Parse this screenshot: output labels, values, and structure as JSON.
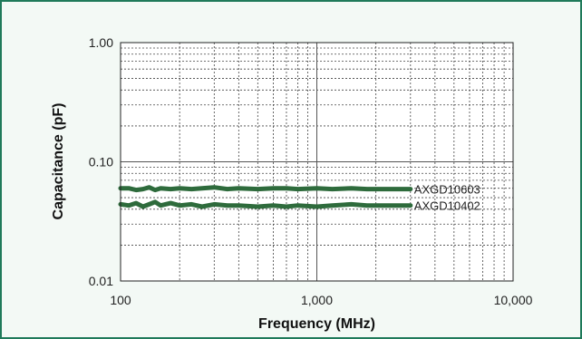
{
  "chart_data": {
    "type": "line",
    "title": "",
    "xlabel": "Frequency (MHz)",
    "ylabel": "Capacitance (pF)",
    "xscale": "log",
    "yscale": "log",
    "xlim": [
      100,
      10000
    ],
    "ylim": [
      0.01,
      1.0
    ],
    "x_ticks": [
      {
        "value": 100,
        "label": "100"
      },
      {
        "value": 1000,
        "label": "1,000"
      },
      {
        "value": 10000,
        "label": "10,000"
      }
    ],
    "y_ticks": [
      {
        "value": 0.01,
        "label": "0.01"
      },
      {
        "value": 0.1,
        "label": "0.10"
      },
      {
        "value": 1.0,
        "label": "1.00"
      }
    ],
    "grid": true,
    "line_color": "#2e6b3c",
    "series": [
      {
        "name": "AXGD10603",
        "x": [
          100,
          110,
          120,
          130,
          140,
          150,
          160,
          180,
          200,
          230,
          260,
          300,
          350,
          400,
          500,
          600,
          700,
          800,
          1000,
          1200,
          1500,
          1800,
          2000,
          2500,
          3000
        ],
        "values": [
          0.06,
          0.06,
          0.058,
          0.059,
          0.061,
          0.058,
          0.06,
          0.059,
          0.06,
          0.059,
          0.06,
          0.061,
          0.059,
          0.06,
          0.059,
          0.06,
          0.06,
          0.059,
          0.06,
          0.059,
          0.06,
          0.059,
          0.059,
          0.059,
          0.059
        ]
      },
      {
        "name": "AXGD10402",
        "x": [
          100,
          110,
          120,
          130,
          140,
          150,
          160,
          180,
          200,
          230,
          260,
          300,
          350,
          400,
          500,
          600,
          700,
          800,
          1000,
          1200,
          1500,
          1800,
          2000,
          2500,
          3000
        ],
        "values": [
          0.044,
          0.043,
          0.045,
          0.042,
          0.044,
          0.046,
          0.043,
          0.045,
          0.043,
          0.044,
          0.042,
          0.044,
          0.043,
          0.043,
          0.042,
          0.043,
          0.042,
          0.043,
          0.042,
          0.043,
          0.044,
          0.043,
          0.043,
          0.043,
          0.043
        ]
      }
    ]
  }
}
